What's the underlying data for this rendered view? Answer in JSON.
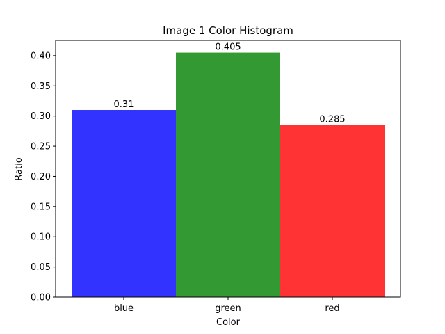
{
  "chart_data": {
    "type": "bar",
    "title": "Image 1 Color Histogram",
    "xlabel": "Color",
    "ylabel": "Ratio",
    "categories": [
      "blue",
      "green",
      "red"
    ],
    "values": [
      0.31,
      0.405,
      0.285
    ],
    "data_labels": [
      "0.31",
      "0.405",
      "0.285"
    ],
    "colors": [
      "#3333ff",
      "#339933",
      "#ff3333"
    ],
    "ylim": [
      0,
      0.42525
    ],
    "yticks": [
      0.0,
      0.05,
      0.1,
      0.15,
      0.2,
      0.25,
      0.3,
      0.35,
      0.4
    ],
    "ytick_labels": [
      "0.00",
      "0.05",
      "0.10",
      "0.15",
      "0.20",
      "0.25",
      "0.30",
      "0.35",
      "0.40"
    ],
    "grid": false,
    "legend": "none"
  }
}
